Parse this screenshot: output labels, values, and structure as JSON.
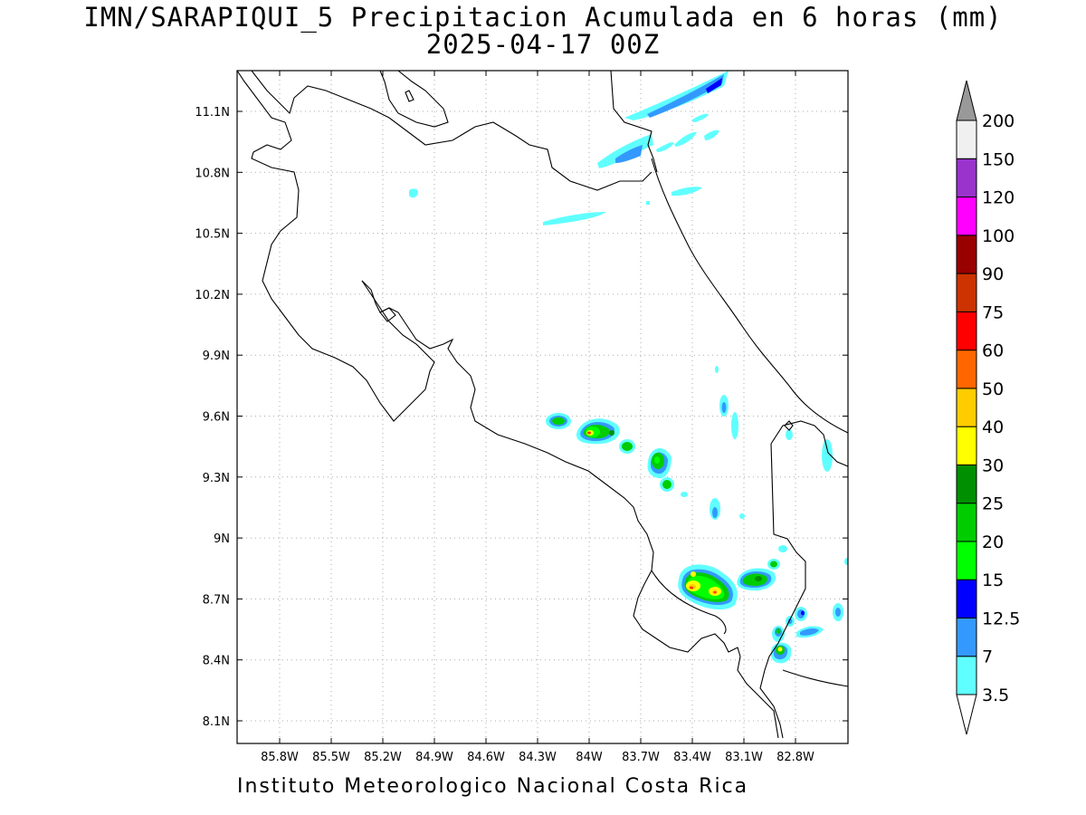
{
  "title": {
    "line1": "IMN/SARAPIQUI_5 Precipitacion Acumulada en 6 horas (mm)",
    "line2": "2025-04-17 00Z"
  },
  "credit": "Instituto Meteorologico Nacional Costa Rica",
  "map": {
    "lon_range": [
      -86.0,
      -82.55
    ],
    "lat_range": [
      8.0,
      11.2
    ],
    "grid": true,
    "lon_ticks": [
      "85.8W",
      "85.5W",
      "85.2W",
      "84.9W",
      "84.6W",
      "84.3W",
      "84W",
      "83.7W",
      "83.4W",
      "83.1W",
      "82.8W"
    ],
    "lat_ticks": [
      "11.1N",
      "10.8N",
      "10.5N",
      "10.2N",
      "9.9N",
      "9.6N",
      "9.3N",
      "9N",
      "8.7N",
      "8.4N",
      "8.1N"
    ]
  },
  "colorbar": {
    "levels": [
      "3.5",
      "7",
      "12.5",
      "15",
      "20",
      "25",
      "30",
      "40",
      "50",
      "60",
      "75",
      "90",
      "100",
      "120",
      "150",
      "200"
    ],
    "colors": [
      "#60ffff",
      "#3399ff",
      "#0000ff",
      "#00ff00",
      "#00cc00",
      "#008f00",
      "#ffff00",
      "#ffcc00",
      "#ff6600",
      "#ff0000",
      "#cc3300",
      "#990000",
      "#ff00ff",
      "#9933cc",
      "#f0f0f0"
    ],
    "upper_arrow_color": "#999999"
  },
  "precip_colors": {
    "light": "#60ffff",
    "moderate": "#3399ff",
    "heavy": "#0000ff",
    "green1": "#00ff00",
    "green2": "#00cc00",
    "green3": "#008f00",
    "yellow": "#ffff00",
    "orange": "#ffcc00",
    "red": "#ff3300"
  }
}
